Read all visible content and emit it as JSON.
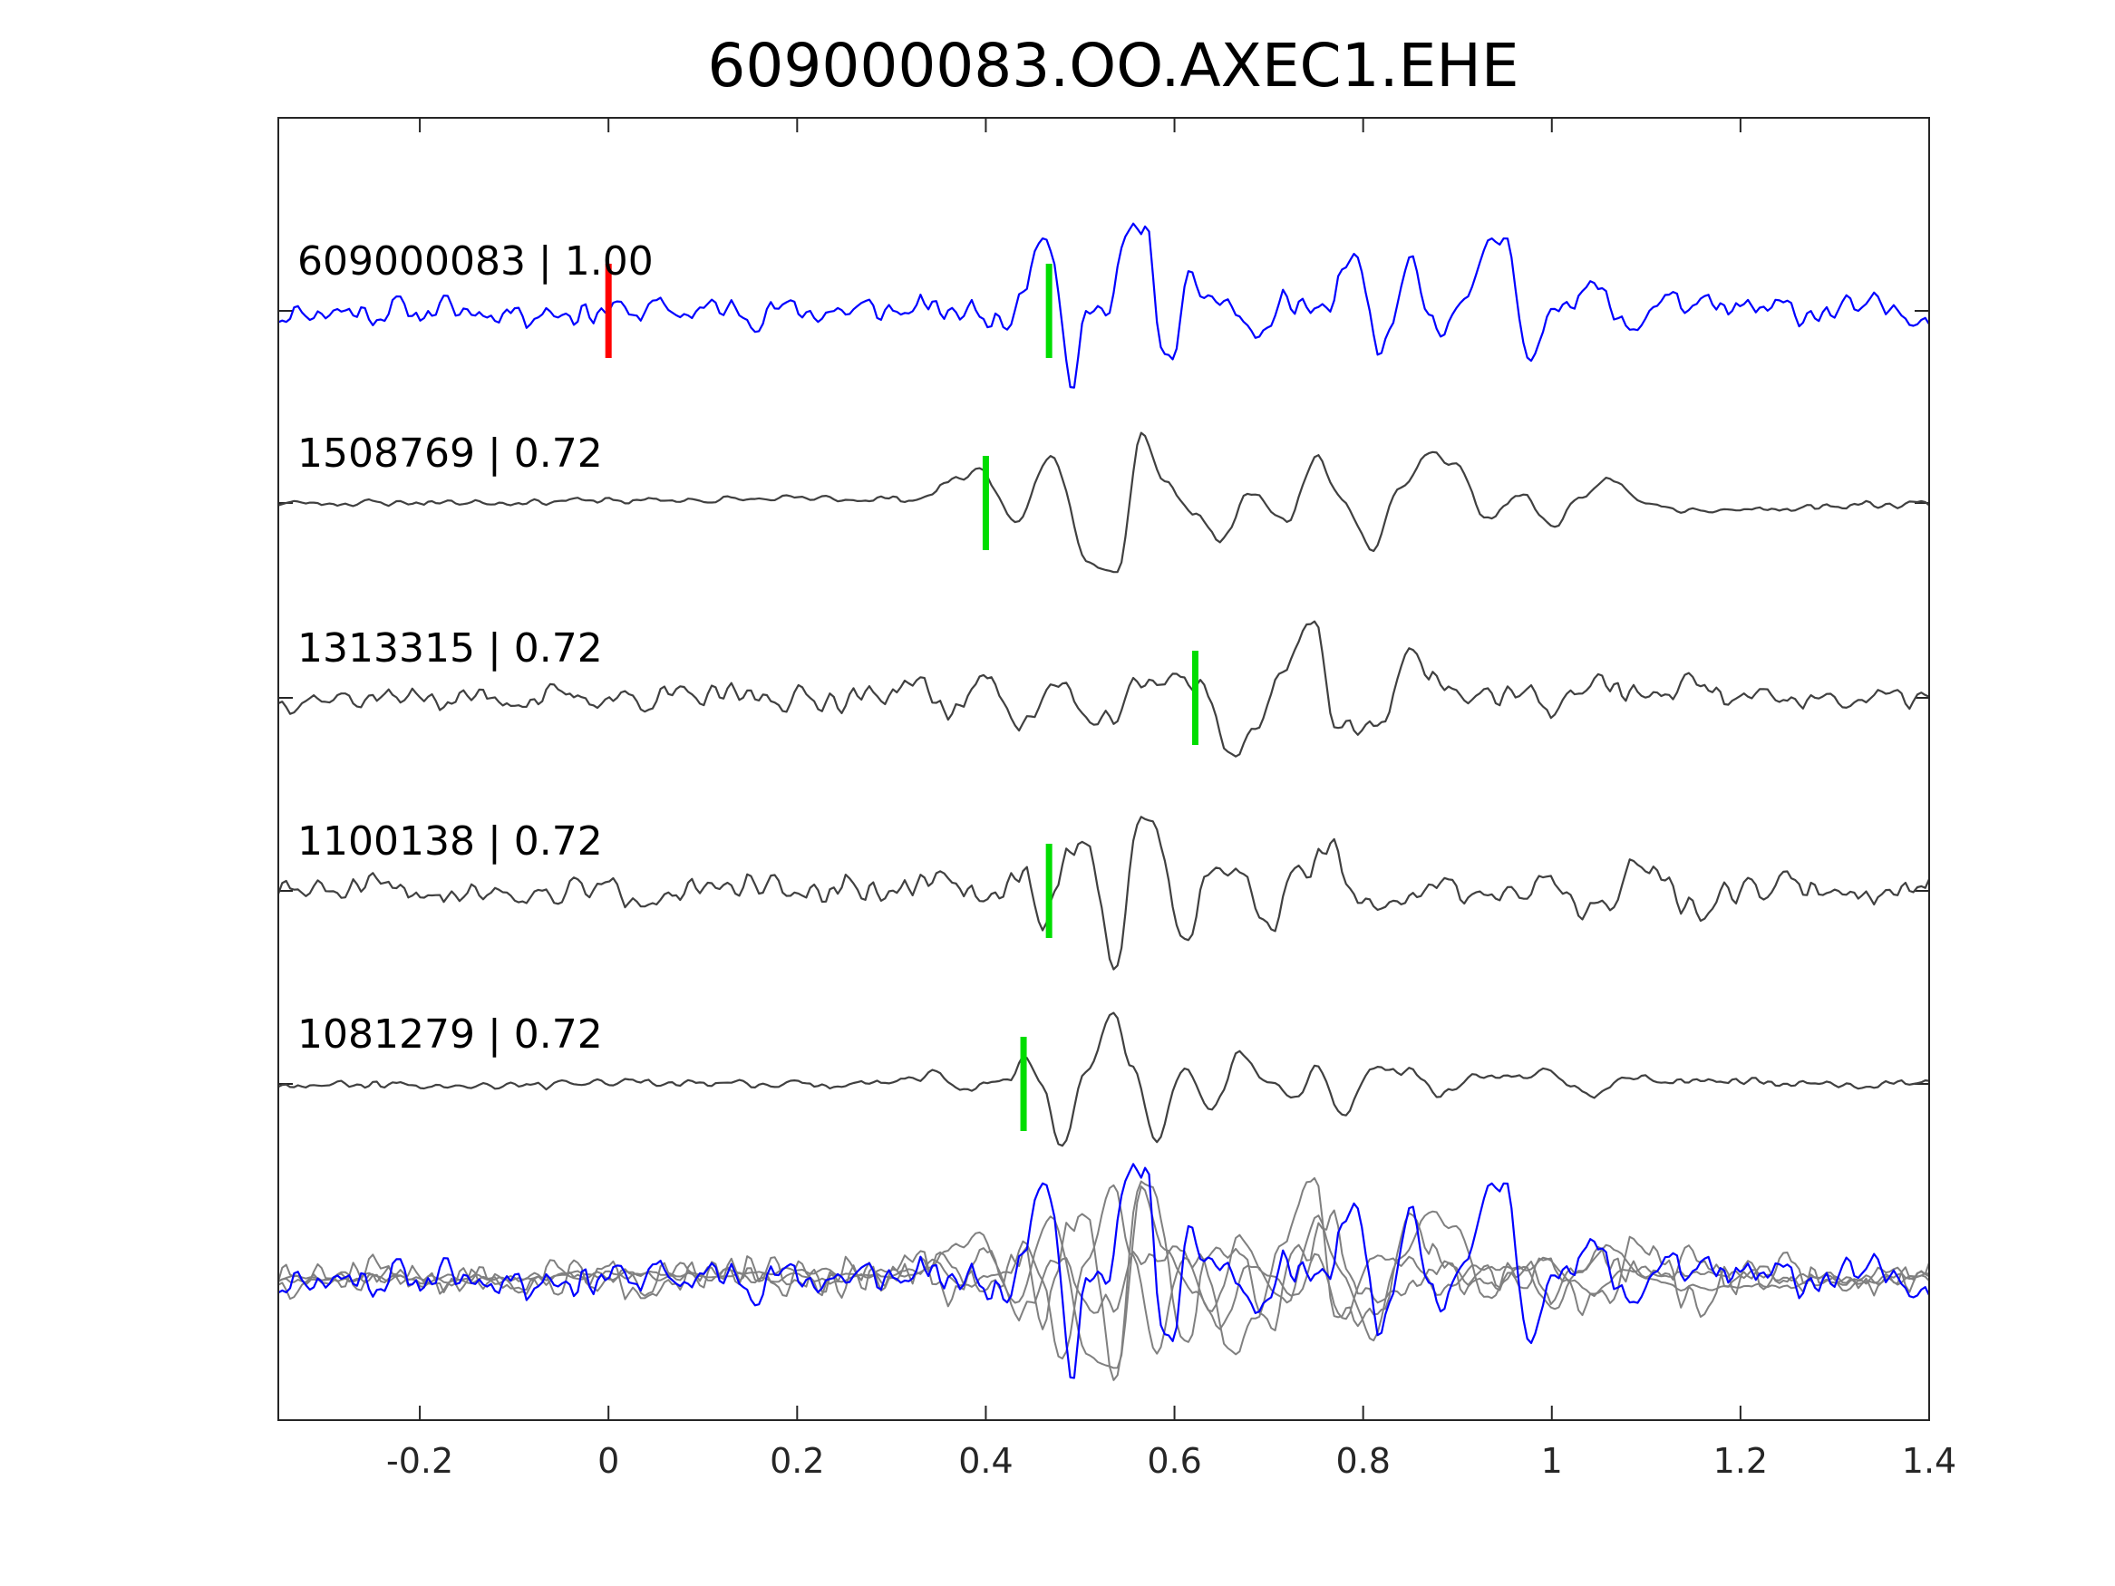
{
  "chart_data": {
    "type": "line",
    "title": "609000083.OO.AXEC1.EHE",
    "xlim": [
      -0.35,
      1.4
    ],
    "x_ticks": [
      -0.2,
      0,
      0.2,
      0.4,
      0.6,
      0.8,
      1,
      1.2,
      1.4
    ],
    "x_tick_labels": [
      "-0.2",
      "0",
      "0.2",
      "0.4",
      "0.6",
      "0.8",
      "1",
      "1.2",
      "1.4"
    ],
    "grid": false,
    "colors": {
      "template": "#0000ff",
      "match": "#404040",
      "overlay_match": "#808080",
      "template_pick": "#ff0000",
      "match_pick": "#00dd00"
    },
    "traces": [
      {
        "label": "609000083 | 1.00",
        "event_id": "609000083",
        "cc": "1.00",
        "color": "template",
        "seed": 11,
        "pick_times": [
          0,
          0.467
        ],
        "pick_colors": [
          "template_pick",
          "match_pick"
        ],
        "keypoints": [
          [
            -0.35,
            0
          ],
          [
            0.38,
            0
          ],
          [
            0.42,
            -0.1
          ],
          [
            0.44,
            0.35
          ],
          [
            0.455,
            0.9
          ],
          [
            0.47,
            0.75
          ],
          [
            0.49,
            -1.0
          ],
          [
            0.51,
            0.2
          ],
          [
            0.53,
            -0.1
          ],
          [
            0.55,
            0.9
          ],
          [
            0.57,
            1.0
          ],
          [
            0.59,
            -0.7
          ],
          [
            0.62,
            0.3
          ],
          [
            0.65,
            0.1
          ],
          [
            0.69,
            -0.3
          ],
          [
            0.72,
            0.1
          ],
          [
            0.76,
            0.0
          ],
          [
            0.79,
            0.55
          ],
          [
            0.82,
            -0.5
          ],
          [
            0.85,
            0.55
          ],
          [
            0.88,
            -0.4
          ],
          [
            0.92,
            0.5
          ],
          [
            0.95,
            0.9
          ],
          [
            0.98,
            -0.6
          ],
          [
            1.01,
            0.15
          ],
          [
            1.04,
            0.3
          ],
          [
            1.08,
            -0.2
          ],
          [
            1.12,
            0.15
          ],
          [
            1.16,
            0.0
          ],
          [
            1.4,
            0
          ]
        ],
        "noise": 0.17
      },
      {
        "label": "1508769 | 0.72",
        "event_id": "1508769",
        "cc": "0.72",
        "color": "match",
        "seed": 23,
        "pick_times": [
          0.4
        ],
        "pick_colors": [
          "match_pick"
        ],
        "keypoints": [
          [
            -0.35,
            0
          ],
          [
            0.33,
            0.05
          ],
          [
            0.37,
            0.3
          ],
          [
            0.395,
            0.4
          ],
          [
            0.43,
            -0.25
          ],
          [
            0.47,
            0.55
          ],
          [
            0.51,
            -0.7
          ],
          [
            0.54,
            -0.8
          ],
          [
            0.565,
            0.85
          ],
          [
            0.59,
            0.25
          ],
          [
            0.62,
            -0.1
          ],
          [
            0.65,
            -0.45
          ],
          [
            0.68,
            0.1
          ],
          [
            0.72,
            -0.2
          ],
          [
            0.75,
            0.55
          ],
          [
            0.78,
            0.0
          ],
          [
            0.81,
            -0.55
          ],
          [
            0.84,
            0.2
          ],
          [
            0.87,
            0.6
          ],
          [
            0.9,
            0.45
          ],
          [
            0.93,
            -0.2
          ],
          [
            0.97,
            0.1
          ],
          [
            1.0,
            -0.3
          ],
          [
            1.03,
            0.1
          ],
          [
            1.06,
            0.3
          ],
          [
            1.1,
            0.0
          ],
          [
            1.14,
            -0.1
          ],
          [
            1.4,
            0
          ]
        ],
        "noise": 0.04
      },
      {
        "label": "1313315 | 0.72",
        "event_id": "1313315",
        "cc": "0.72",
        "color": "match",
        "seed": 37,
        "pick_times": [
          0.622
        ],
        "pick_colors": [
          "match_pick"
        ],
        "keypoints": [
          [
            -0.35,
            0
          ],
          [
            0.28,
            0
          ],
          [
            0.32,
            0.2
          ],
          [
            0.36,
            -0.15
          ],
          [
            0.4,
            0.2
          ],
          [
            0.44,
            -0.25
          ],
          [
            0.48,
            0.15
          ],
          [
            0.52,
            -0.4
          ],
          [
            0.56,
            0.1
          ],
          [
            0.6,
            0.3
          ],
          [
            0.63,
            0.1
          ],
          [
            0.66,
            -0.65
          ],
          [
            0.69,
            -0.35
          ],
          [
            0.72,
            0.5
          ],
          [
            0.75,
            1.0
          ],
          [
            0.77,
            -0.35
          ],
          [
            0.81,
            -0.45
          ],
          [
            0.85,
            0.5
          ],
          [
            0.88,
            0.2
          ],
          [
            0.92,
            -0.05
          ],
          [
            0.96,
            0.1
          ],
          [
            1.0,
            -0.1
          ],
          [
            1.05,
            0.2
          ],
          [
            1.1,
            0.0
          ],
          [
            1.15,
            0.15
          ],
          [
            1.2,
            -0.05
          ],
          [
            1.4,
            0
          ]
        ],
        "noise": 0.14
      },
      {
        "label": "1100138 | 0.72",
        "event_id": "1100138",
        "cc": "0.72",
        "color": "match",
        "seed": 51,
        "pick_times": [
          0.467
        ],
        "pick_colors": [
          "match_pick"
        ],
        "keypoints": [
          [
            -0.35,
            0
          ],
          [
            0.3,
            0
          ],
          [
            0.35,
            0.15
          ],
          [
            0.4,
            -0.15
          ],
          [
            0.44,
            0.2
          ],
          [
            0.46,
            -0.45
          ],
          [
            0.49,
            0.55
          ],
          [
            0.51,
            0.55
          ],
          [
            0.535,
            -1.0
          ],
          [
            0.56,
            0.7
          ],
          [
            0.58,
            0.85
          ],
          [
            0.61,
            -0.6
          ],
          [
            0.64,
            0.4
          ],
          [
            0.67,
            0.2
          ],
          [
            0.7,
            -0.4
          ],
          [
            0.73,
            0.15
          ],
          [
            0.76,
            0.55
          ],
          [
            0.8,
            -0.2
          ],
          [
            0.84,
            -0.1
          ],
          [
            0.88,
            0.1
          ],
          [
            0.92,
            0.0
          ],
          [
            0.96,
            -0.1
          ],
          [
            1.0,
            0.1
          ],
          [
            1.05,
            -0.2
          ],
          [
            1.1,
            0.3
          ],
          [
            1.15,
            -0.2
          ],
          [
            1.2,
            0.05
          ],
          [
            1.4,
            0
          ]
        ],
        "noise": 0.16
      },
      {
        "label": "1081279 | 0.72",
        "event_id": "1081279",
        "cc": "0.72",
        "color": "match",
        "seed": 67,
        "pick_times": [
          0.44
        ],
        "pick_colors": [
          "match_pick"
        ],
        "keypoints": [
          [
            -0.35,
            0
          ],
          [
            0.3,
            0
          ],
          [
            0.34,
            0.1
          ],
          [
            0.38,
            -0.05
          ],
          [
            0.425,
            0.05
          ],
          [
            0.44,
            0.35
          ],
          [
            0.46,
            0.0
          ],
          [
            0.48,
            -0.75
          ],
          [
            0.505,
            0.1
          ],
          [
            0.535,
            0.85
          ],
          [
            0.555,
            0.2
          ],
          [
            0.58,
            -0.65
          ],
          [
            0.61,
            0.15
          ],
          [
            0.64,
            -0.3
          ],
          [
            0.67,
            0.35
          ],
          [
            0.7,
            0.0
          ],
          [
            0.73,
            -0.15
          ],
          [
            0.75,
            0.2
          ],
          [
            0.78,
            -0.4
          ],
          [
            0.81,
            0.2
          ],
          [
            0.85,
            0.15
          ],
          [
            0.88,
            -0.1
          ],
          [
            0.92,
            0.1
          ],
          [
            0.96,
            0.05
          ],
          [
            1.0,
            0.15
          ],
          [
            1.04,
            -0.15
          ],
          [
            1.08,
            0.1
          ],
          [
            1.12,
            0.05
          ],
          [
            1.4,
            0
          ]
        ],
        "noise": 0.05
      }
    ],
    "overlay": {
      "description_omitted": true,
      "traces": [
        "609000083",
        "1508769",
        "1313315",
        "1100138",
        "1081279"
      ]
    }
  }
}
